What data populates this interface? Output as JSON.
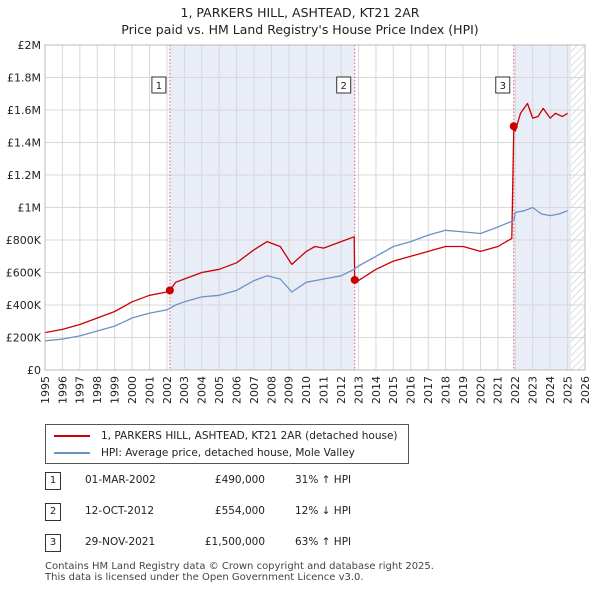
{
  "title": "1, PARKERS HILL, ASHTEAD, KT21 2AR",
  "subtitle": "Price paid vs. HM Land Registry's House Price Index (HPI)",
  "chart_data": {
    "type": "line",
    "title": "1, PARKERS HILL, ASHTEAD, KT21 2AR",
    "subtitle": "Price paid vs. HM Land Registry's House Price Index (HPI)",
    "xlabel": "",
    "ylabel": "",
    "xlim": [
      1995,
      2026
    ],
    "ylim": [
      0,
      2000000
    ],
    "x_ticks": [
      1995,
      1996,
      1997,
      1998,
      1999,
      2000,
      2001,
      2002,
      2003,
      2004,
      2005,
      2006,
      2007,
      2008,
      2009,
      2010,
      2011,
      2012,
      2013,
      2014,
      2015,
      2016,
      2017,
      2018,
      2019,
      2020,
      2021,
      2022,
      2023,
      2024,
      2025,
      2026
    ],
    "y_ticks": [
      0,
      200000,
      400000,
      600000,
      800000,
      1000000,
      1200000,
      1400000,
      1600000,
      1800000,
      2000000
    ],
    "y_tick_labels": [
      "£0",
      "£200K",
      "£400K",
      "£600K",
      "£800K",
      "£1M",
      "£1.2M",
      "£1.4M",
      "£1.6M",
      "£1.8M",
      "£2M"
    ],
    "grid": true,
    "hatched_future_from": 2025.2,
    "series": [
      {
        "name": "1, PARKERS HILL, ASHTEAD, KT21 2AR (detached house)",
        "color": "#cc0000",
        "x": [
          1995.0,
          1996.0,
          1997.0,
          1998.0,
          1999.0,
          2000.0,
          2001.0,
          2002.0,
          2002.17,
          2002.5,
          2003.0,
          2004.0,
          2005.0,
          2006.0,
          2007.0,
          2007.75,
          2008.5,
          2009.17,
          2010.0,
          2010.5,
          2011.0,
          2012.0,
          2012.75,
          2012.78,
          2013.0,
          2014.0,
          2015.0,
          2016.0,
          2017.0,
          2018.0,
          2019.0,
          2020.0,
          2021.0,
          2021.8,
          2021.91,
          2022.0,
          2022.3,
          2022.7,
          2023.0,
          2023.3,
          2023.6,
          2024.0,
          2024.3,
          2024.7,
          2025.0
        ],
        "values": [
          230000,
          250000,
          280000,
          320000,
          360000,
          420000,
          460000,
          480000,
          490000,
          540000,
          560000,
          600000,
          620000,
          660000,
          740000,
          790000,
          760000,
          650000,
          730000,
          760000,
          750000,
          790000,
          820000,
          554000,
          550000,
          620000,
          670000,
          700000,
          730000,
          760000,
          760000,
          730000,
          760000,
          810000,
          1500000,
          1470000,
          1580000,
          1640000,
          1550000,
          1560000,
          1610000,
          1550000,
          1580000,
          1560000,
          1580000
        ]
      },
      {
        "name": "HPI: Average price, detached house, Mole Valley",
        "color": "#6b93c8",
        "x": [
          1995.0,
          1996.0,
          1997.0,
          1998.0,
          1999.0,
          2000.0,
          2001.0,
          2002.0,
          2002.5,
          2003.0,
          2004.0,
          2005.0,
          2006.0,
          2007.0,
          2007.75,
          2008.5,
          2009.17,
          2010.0,
          2011.0,
          2012.0,
          2012.75,
          2013.0,
          2014.0,
          2015.0,
          2016.0,
          2017.0,
          2018.0,
          2019.0,
          2020.0,
          2021.0,
          2021.91,
          2022.0,
          2022.5,
          2023.0,
          2023.5,
          2024.0,
          2024.5,
          2025.0
        ],
        "values": [
          180000,
          190000,
          210000,
          240000,
          270000,
          320000,
          350000,
          370000,
          400000,
          420000,
          450000,
          460000,
          490000,
          550000,
          580000,
          560000,
          480000,
          540000,
          560000,
          580000,
          620000,
          640000,
          700000,
          760000,
          790000,
          830000,
          860000,
          850000,
          840000,
          880000,
          920000,
          970000,
          980000,
          1000000,
          960000,
          950000,
          960000,
          980000
        ]
      }
    ],
    "annotations": [
      {
        "label": "1",
        "x": 2002.17,
        "price": 490000
      },
      {
        "label": "2",
        "x": 2012.78,
        "price": 554000
      },
      {
        "label": "3",
        "x": 2021.91,
        "price": 1500000
      }
    ]
  },
  "legend": {
    "property_label": "1, PARKERS HILL, ASHTEAD, KT21 2AR (detached house)",
    "hpi_label": "HPI: Average price, detached house, Mole Valley"
  },
  "sales": [
    {
      "num": "1",
      "date": "01-MAR-2002",
      "price": "£490,000",
      "hpi": "31% ↑ HPI"
    },
    {
      "num": "2",
      "date": "12-OCT-2012",
      "price": "£554,000",
      "hpi": "12% ↓ HPI"
    },
    {
      "num": "3",
      "date": "29-NOV-2021",
      "price": "£1,500,000",
      "hpi": "63% ↑ HPI"
    }
  ],
  "footer": {
    "line1": "Contains HM Land Registry data © Crown copyright and database right 2025.",
    "line2": "This data is licensed under the Open Government Licence v3.0."
  }
}
